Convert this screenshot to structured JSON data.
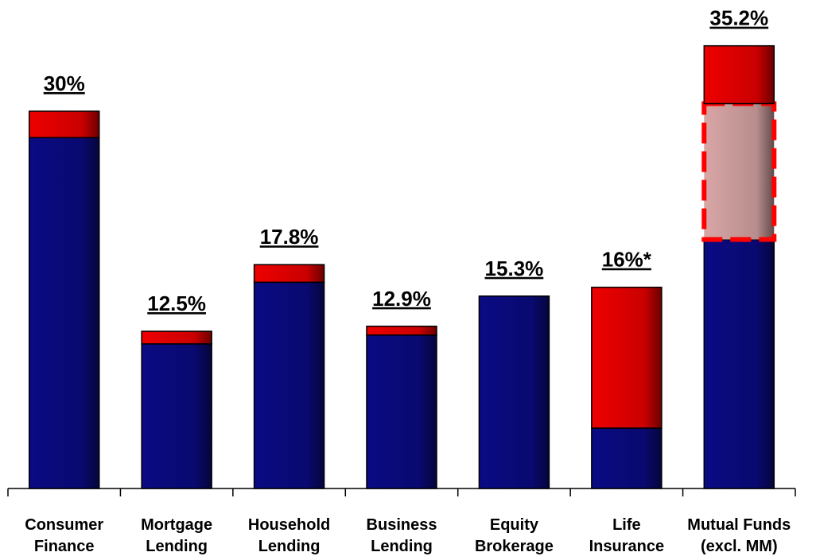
{
  "chart_data": {
    "type": "stacked-bar",
    "categories": [
      [
        "Consumer",
        "Finance"
      ],
      [
        "Mortgage",
        "Lending"
      ],
      [
        "Household",
        "Lending"
      ],
      [
        "Business",
        "Lending"
      ],
      [
        "Equity",
        "Brokerage"
      ],
      [
        "Life",
        "Insurance"
      ],
      [
        "Mutual Funds",
        "(excl. MM)"
      ]
    ],
    "series": [
      {
        "color": "#0a0a84",
        "values": [
          27.9,
          11.5,
          16.4,
          12.2,
          15.3,
          4.8,
          19.8
        ]
      },
      {
        "color": "#ee0000",
        "values": [
          2.1,
          1.0,
          1.4,
          0.7,
          0,
          11.2,
          null
        ]
      },
      {
        "color": "#d9a6a6",
        "border": "dashed",
        "border_color": "#ff0000",
        "values": [
          null,
          null,
          null,
          null,
          null,
          null,
          10.8
        ]
      },
      {
        "color": "#ee0000",
        "values": [
          null,
          null,
          null,
          null,
          null,
          null,
          4.6
        ]
      }
    ],
    "totals": {
      "values": [
        30,
        12.5,
        17.8,
        12.9,
        15.3,
        16,
        35.2
      ],
      "value_labels": [
        "30%",
        "12.5%",
        "17.8%",
        "12.9%",
        "15.3%",
        "16%*",
        "35.2%"
      ]
    },
    "ylim": [
      0,
      36
    ]
  }
}
